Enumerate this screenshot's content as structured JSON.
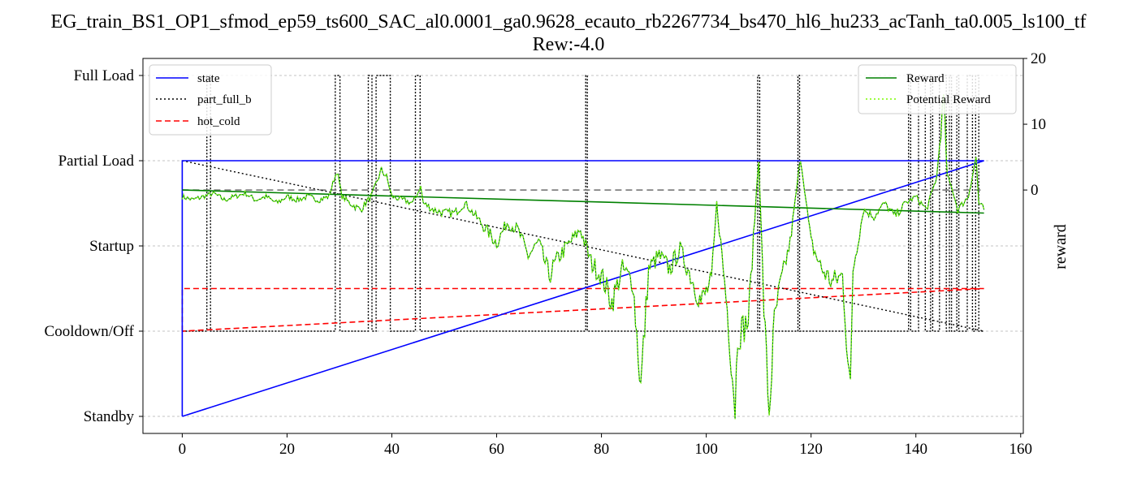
{
  "chart_data": {
    "type": "line",
    "title_line1": "EG_train_BS1_OP1_sfmod_ep59_ts600_SAC_al0.0001_ga0.9628_ecauto_rb2267734_bs470_hl6_hu233_acTanh_ta0.005_ls100_tf",
    "title_line2": "Rew:-4.0",
    "xlim": [
      -7.5,
      160.5
    ],
    "x_ticks": [
      0,
      20,
      40,
      60,
      80,
      100,
      120,
      140,
      160
    ],
    "left_axis": {
      "ylim": [
        -0.2,
        4.2
      ],
      "ticks": [
        0,
        1,
        2,
        3,
        4
      ],
      "tick_labels": [
        "Standby",
        "Cooldown/Off",
        "Startup",
        "Partial Load",
        "Full Load"
      ]
    },
    "right_axis": {
      "label": "reward",
      "ylim": [
        -37,
        20
      ],
      "ticks": [
        0,
        10,
        20
      ],
      "tick_labels": [
        "0",
        "10",
        "20"
      ]
    },
    "grid": "horizontal dashed",
    "legend_left": {
      "placement": "upper-left",
      "entries": [
        {
          "label": "state",
          "color": "#0000ff",
          "style": "solid"
        },
        {
          "label": "part_full_b",
          "color": "#000000",
          "style": "dotted"
        },
        {
          "label": "hot_cold",
          "color": "#ff0000",
          "style": "dashed"
        }
      ]
    },
    "legend_right": {
      "placement": "upper-right",
      "entries": [
        {
          "label": "Reward",
          "color": "#008000",
          "style": "solid"
        },
        {
          "label": "Potential Reward",
          "color": "#7cfc00",
          "style": "dotted"
        }
      ]
    },
    "series_state": [
      [
        0,
        0
      ],
      [
        0,
        3
      ],
      [
        153,
        3
      ],
      [
        0,
        0
      ]
    ],
    "series_hot_cold": [
      [
        0,
        1
      ],
      [
        0,
        1.5
      ],
      [
        153,
        1.5
      ],
      [
        0,
        1
      ]
    ],
    "series_part_full_trend": [
      [
        0,
        3
      ],
      [
        153,
        1
      ]
    ],
    "part_full_pulses": [
      [
        4.7,
        5.4
      ],
      [
        29.2,
        30.1
      ],
      [
        35.5,
        36.2
      ],
      [
        37.0,
        39.7
      ],
      [
        44.5,
        45.4
      ],
      [
        77.0,
        77.3
      ],
      [
        109.8,
        110.2
      ],
      [
        117.5,
        117.8
      ],
      [
        138.6,
        139.0
      ],
      [
        140.5,
        141.8
      ],
      [
        142.8,
        143.2
      ],
      [
        144.5,
        145.8
      ],
      [
        146.4,
        146.8
      ],
      [
        147.8,
        148.2
      ],
      [
        149.8,
        150.8
      ],
      [
        151.4,
        152.0
      ]
    ],
    "reward_zero_line": 0,
    "reward_trend": [
      [
        0,
        0
      ],
      [
        153,
        -3.5
      ]
    ],
    "reward_anchors": [
      [
        0,
        -1
      ],
      [
        2,
        -1.5
      ],
      [
        4,
        -1
      ],
      [
        6,
        -0.5
      ],
      [
        8,
        -1.5
      ],
      [
        10,
        -1
      ],
      [
        12,
        -0.5
      ],
      [
        14,
        -1.5
      ],
      [
        16,
        -1
      ],
      [
        18,
        -2
      ],
      [
        20,
        -1
      ],
      [
        22,
        -1.5
      ],
      [
        24,
        -1
      ],
      [
        26,
        -1.5
      ],
      [
        28,
        -1
      ],
      [
        29.5,
        3
      ],
      [
        30.5,
        -1
      ],
      [
        32,
        -2
      ],
      [
        34,
        -3
      ],
      [
        36,
        -1
      ],
      [
        37,
        1
      ],
      [
        38,
        3
      ],
      [
        39,
        2
      ],
      [
        40,
        -1
      ],
      [
        42,
        -1.5
      ],
      [
        44,
        -2
      ],
      [
        45.5,
        0.5
      ],
      [
        46,
        -2
      ],
      [
        48,
        -3
      ],
      [
        50,
        -3.5
      ],
      [
        52,
        -3.5
      ],
      [
        54,
        -2
      ],
      [
        56,
        -4
      ],
      [
        58,
        -6
      ],
      [
        60,
        -8
      ],
      [
        62,
        -5
      ],
      [
        64,
        -6
      ],
      [
        66,
        -10
      ],
      [
        68,
        -8
      ],
      [
        70,
        -13
      ],
      [
        72,
        -10
      ],
      [
        74,
        -8
      ],
      [
        76,
        -6
      ],
      [
        78,
        -11
      ],
      [
        80,
        -13
      ],
      [
        82,
        -17
      ],
      [
        84,
        -12
      ],
      [
        86,
        -14
      ],
      [
        87.5,
        -30
      ],
      [
        89,
        -12
      ],
      [
        91,
        -10
      ],
      [
        93,
        -12
      ],
      [
        95,
        -9
      ],
      [
        97,
        -13
      ],
      [
        99,
        -17
      ],
      [
        101,
        -14
      ],
      [
        102,
        -2
      ],
      [
        104,
        -18
      ],
      [
        105.5,
        -33
      ],
      [
        106,
        -22
      ],
      [
        108,
        -20
      ],
      [
        110,
        5
      ],
      [
        111,
        -18
      ],
      [
        112,
        -34
      ],
      [
        113,
        -20
      ],
      [
        114,
        -15
      ],
      [
        116,
        -8
      ],
      [
        118,
        5
      ],
      [
        120,
        -8
      ],
      [
        122,
        -12
      ],
      [
        124,
        -14
      ],
      [
        126,
        -13
      ],
      [
        127.5,
        -31
      ],
      [
        128,
        -12
      ],
      [
        130,
        -3
      ],
      [
        132,
        -4
      ],
      [
        134,
        -2
      ],
      [
        136,
        -4
      ],
      [
        138,
        -2
      ],
      [
        140,
        -1
      ],
      [
        142,
        -3
      ],
      [
        144,
        2
      ],
      [
        145.3,
        14
      ],
      [
        146,
        2
      ],
      [
        147,
        0
      ],
      [
        148,
        -3
      ],
      [
        150,
        -1
      ],
      [
        151.5,
        5
      ],
      [
        152,
        -2
      ],
      [
        153,
        -3
      ]
    ],
    "colors": {
      "state": "#0000ff",
      "part_full_b": "#000000",
      "hot_cold": "#ff0000",
      "reward": "#008000",
      "potential_reward": "#7cfc00",
      "zero_line": "#808080",
      "grid": "#b0b0b0"
    }
  }
}
